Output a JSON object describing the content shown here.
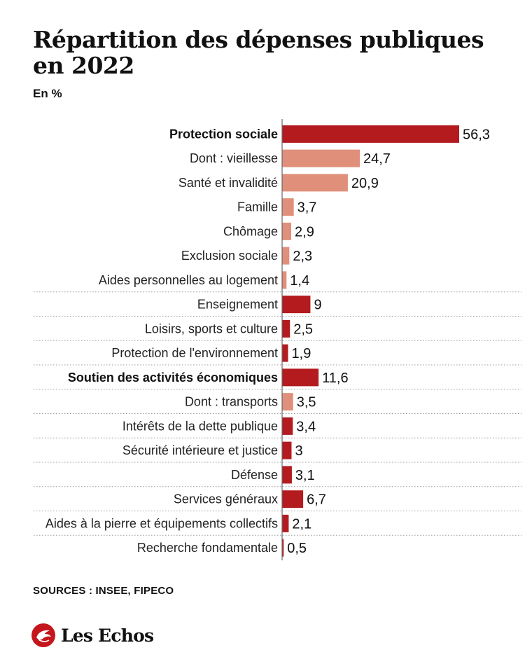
{
  "header": {
    "title": "Répartition des dépenses publiques en 2022",
    "subtitle": "En %"
  },
  "footer": {
    "sources": "SOURCES : INSEE, FIPECO",
    "brand": "Les Echos"
  },
  "colors": {
    "main_bar": "#b31b1e",
    "sub_bar": "#e0907a",
    "axis": "#666666",
    "separator": "#9a9a9a"
  },
  "chart_data": {
    "type": "bar",
    "orientation": "horizontal",
    "title": "Répartition des dépenses publiques en 2022",
    "unit": "En %",
    "xlim": [
      0,
      56.3
    ],
    "grid": false,
    "categories": [
      "Protection sociale",
      "Dont : vieillesse",
      "Santé et invalidité",
      "Famille",
      "Chômage",
      "Exclusion sociale",
      "Aides personnelles au logement",
      "Enseignement",
      "Loisirs, sports et culture",
      "Protection de l'environnement",
      "Soutien des activités économiques",
      "Dont : transports",
      "Intérêts de la dette publique",
      "Sécurité intérieure et justice",
      "Défense",
      "Services généraux",
      "Aides à la pierre et équipements collectifs",
      "Recherche fondamentale"
    ],
    "values": [
      56.3,
      24.7,
      20.9,
      3.7,
      2.9,
      2.3,
      1.4,
      9,
      2.5,
      1.9,
      11.6,
      3.5,
      3.4,
      3,
      3.1,
      6.7,
      2.1,
      0.5
    ],
    "value_labels": [
      "56,3",
      "24,7",
      "20,9",
      "3,7",
      "2,9",
      "2,3",
      "1,4",
      "9",
      "2,5",
      "1,9",
      "11,6",
      "3,5",
      "3,4",
      "3",
      "3,1",
      "6,7",
      "2,1",
      "0,5"
    ],
    "bold": [
      true,
      false,
      false,
      false,
      false,
      false,
      false,
      false,
      false,
      false,
      true,
      false,
      false,
      false,
      false,
      false,
      false,
      false
    ],
    "style": [
      "main",
      "sub",
      "sub",
      "sub",
      "sub",
      "sub",
      "sub",
      "main",
      "main",
      "main",
      "main",
      "sub",
      "main",
      "main",
      "main",
      "main",
      "main",
      "main"
    ],
    "separator_after": [
      6,
      7,
      8,
      9,
      10,
      11,
      12,
      13,
      14,
      15,
      16
    ]
  }
}
